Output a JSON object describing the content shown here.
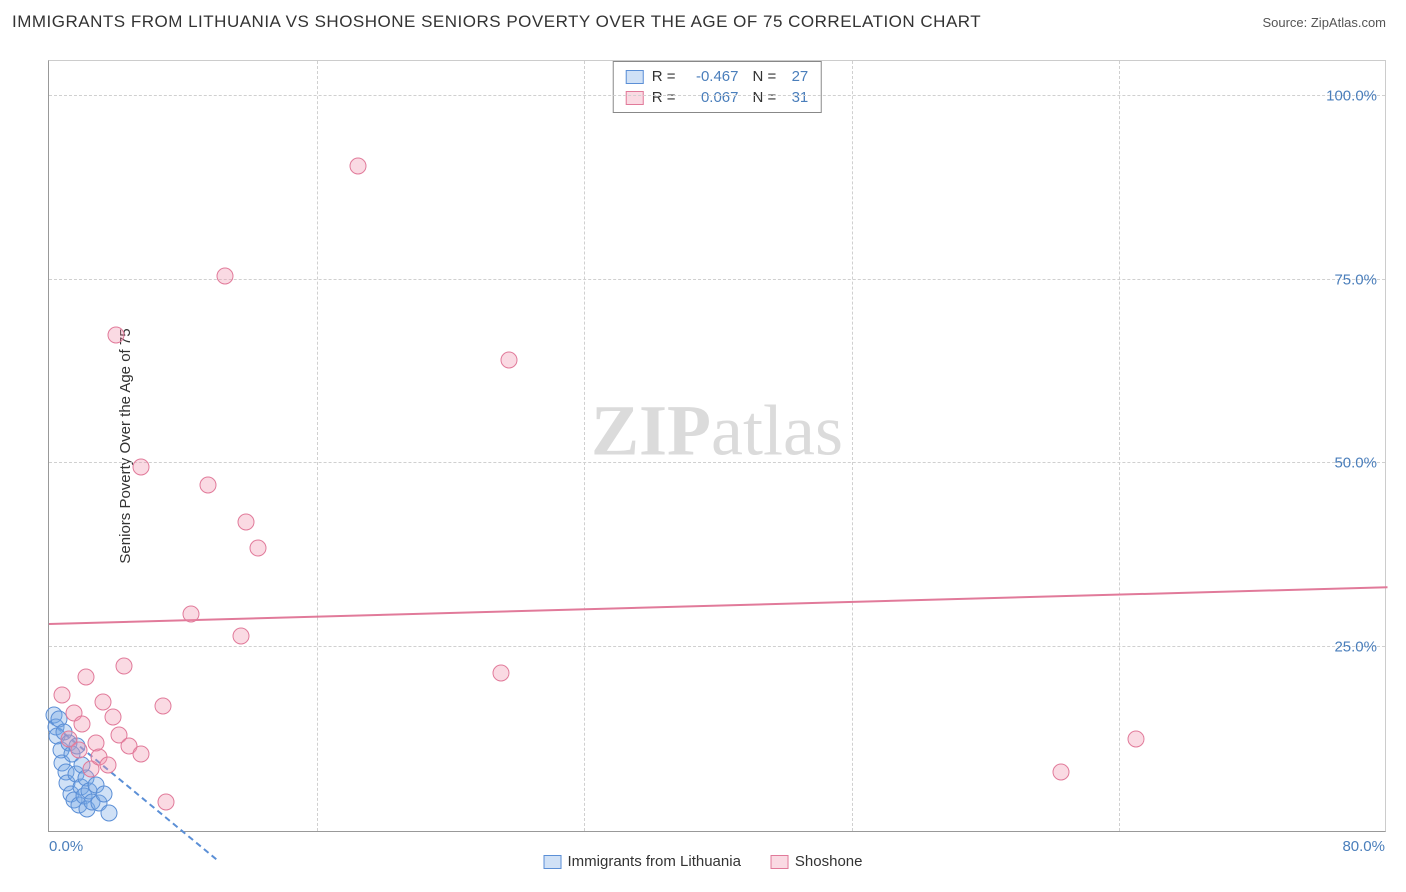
{
  "title": "IMMIGRANTS FROM LITHUANIA VS SHOSHONE SENIORS POVERTY OVER THE AGE OF 75 CORRELATION CHART",
  "source": "Source: ZipAtlas.com",
  "ylabel": "Seniors Poverty Over the Age of 75",
  "watermark_a": "ZIP",
  "watermark_b": "atlas",
  "chart": {
    "type": "scatter",
    "xlim": [
      0,
      80
    ],
    "ylim": [
      0,
      105
    ],
    "xticks": [
      {
        "v": 0,
        "l": "0.0%"
      },
      {
        "v": 80,
        "l": "80.0%"
      }
    ],
    "yticks": [
      {
        "v": 25,
        "l": "25.0%"
      },
      {
        "v": 50,
        "l": "50.0%"
      },
      {
        "v": 75,
        "l": "75.0%"
      },
      {
        "v": 100,
        "l": "100.0%"
      }
    ],
    "xgrid": [
      16,
      32,
      48,
      64
    ],
    "background_color": "#ffffff",
    "grid_color": "#d0d0d0",
    "marker_radius": 8.5,
    "marker_border_width": 1.5,
    "series": [
      {
        "name": "Immigrants from Lithuania",
        "fill": "rgba(120,170,230,0.35)",
        "stroke": "#5b8fd6",
        "R": "-0.467",
        "N": "27",
        "regression": {
          "x1": 0,
          "y1": 14.8,
          "x2": 10,
          "y2": -4,
          "dashed": true,
          "color": "#5b8fd6"
        },
        "points": [
          [
            0.3,
            15.8
          ],
          [
            0.4,
            14.2
          ],
          [
            0.5,
            12.9
          ],
          [
            0.6,
            15.2
          ],
          [
            0.7,
            11.0
          ],
          [
            0.8,
            9.2
          ],
          [
            0.9,
            13.5
          ],
          [
            1.0,
            8.0
          ],
          [
            1.1,
            6.5
          ],
          [
            1.2,
            12.0
          ],
          [
            1.3,
            5.0
          ],
          [
            1.4,
            10.5
          ],
          [
            1.5,
            4.2
          ],
          [
            1.6,
            7.8
          ],
          [
            1.7,
            11.5
          ],
          [
            1.8,
            3.5
          ],
          [
            1.9,
            6.0
          ],
          [
            2.0,
            9.0
          ],
          [
            2.1,
            4.8
          ],
          [
            2.2,
            7.2
          ],
          [
            2.3,
            3.0
          ],
          [
            2.4,
            5.5
          ],
          [
            2.6,
            4.0
          ],
          [
            2.8,
            6.2
          ],
          [
            3.0,
            3.8
          ],
          [
            3.3,
            5.0
          ],
          [
            3.6,
            2.5
          ]
        ]
      },
      {
        "name": "Shoshone",
        "fill": "rgba(240,150,175,0.35)",
        "stroke": "#e17a9a",
        "R": "0.067",
        "N": "31",
        "regression": {
          "x1": 0,
          "y1": 28,
          "x2": 80,
          "y2": 33,
          "dashed": false,
          "color": "#e17a9a"
        },
        "points": [
          [
            0.8,
            18.5
          ],
          [
            1.2,
            12.5
          ],
          [
            1.5,
            16.0
          ],
          [
            1.8,
            11.0
          ],
          [
            2.0,
            14.5
          ],
          [
            2.2,
            21.0
          ],
          [
            2.5,
            8.5
          ],
          [
            2.8,
            12.0
          ],
          [
            3.0,
            10.0
          ],
          [
            3.2,
            17.5
          ],
          [
            3.5,
            9.0
          ],
          [
            3.8,
            15.5
          ],
          [
            4.2,
            13.0
          ],
          [
            4.5,
            22.5
          ],
          [
            4.8,
            11.5
          ],
          [
            5.5,
            10.5
          ],
          [
            6.8,
            17.0
          ],
          [
            7.0,
            4.0
          ],
          [
            4.0,
            67.5
          ],
          [
            5.5,
            49.5
          ],
          [
            9.5,
            47.0
          ],
          [
            10.5,
            75.5
          ],
          [
            11.5,
            26.5
          ],
          [
            11.8,
            42.0
          ],
          [
            12.5,
            38.5
          ],
          [
            8.5,
            29.5
          ],
          [
            18.5,
            90.5
          ],
          [
            27.5,
            64.0
          ],
          [
            27.0,
            21.5
          ],
          [
            60.5,
            8.0
          ],
          [
            65.0,
            12.5
          ]
        ]
      }
    ]
  }
}
